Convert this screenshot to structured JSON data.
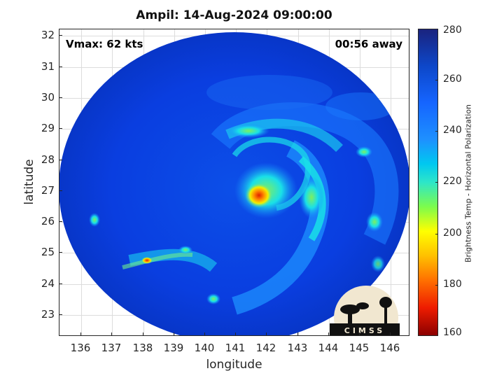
{
  "title": "Ampil: 14-Aug-2024 09:00:00",
  "vmax_text": "Vmax: 62 kts",
  "time_text": "00:56 away",
  "x_axis": {
    "label": "longitude",
    "ticks": [
      "136",
      "137",
      "138",
      "139",
      "140",
      "141",
      "142",
      "143",
      "144",
      "145",
      "146"
    ]
  },
  "y_axis": {
    "label": "latitude",
    "ticks": [
      "32",
      "31",
      "30",
      "29",
      "28",
      "27",
      "26",
      "25",
      "24",
      "23"
    ]
  },
  "colorbar": {
    "label": "Brightness Temp - Horizontal Polarization",
    "ticks": [
      "280",
      "260",
      "240",
      "220",
      "200",
      "180",
      "160"
    ]
  },
  "logo": {
    "text": "CIMSS"
  },
  "colors": {
    "background_scene": "#0a3ee0",
    "warm_core": "#ff6a00",
    "band_cyan": "#19e0e8",
    "band_yellow": "#f5f000"
  }
}
